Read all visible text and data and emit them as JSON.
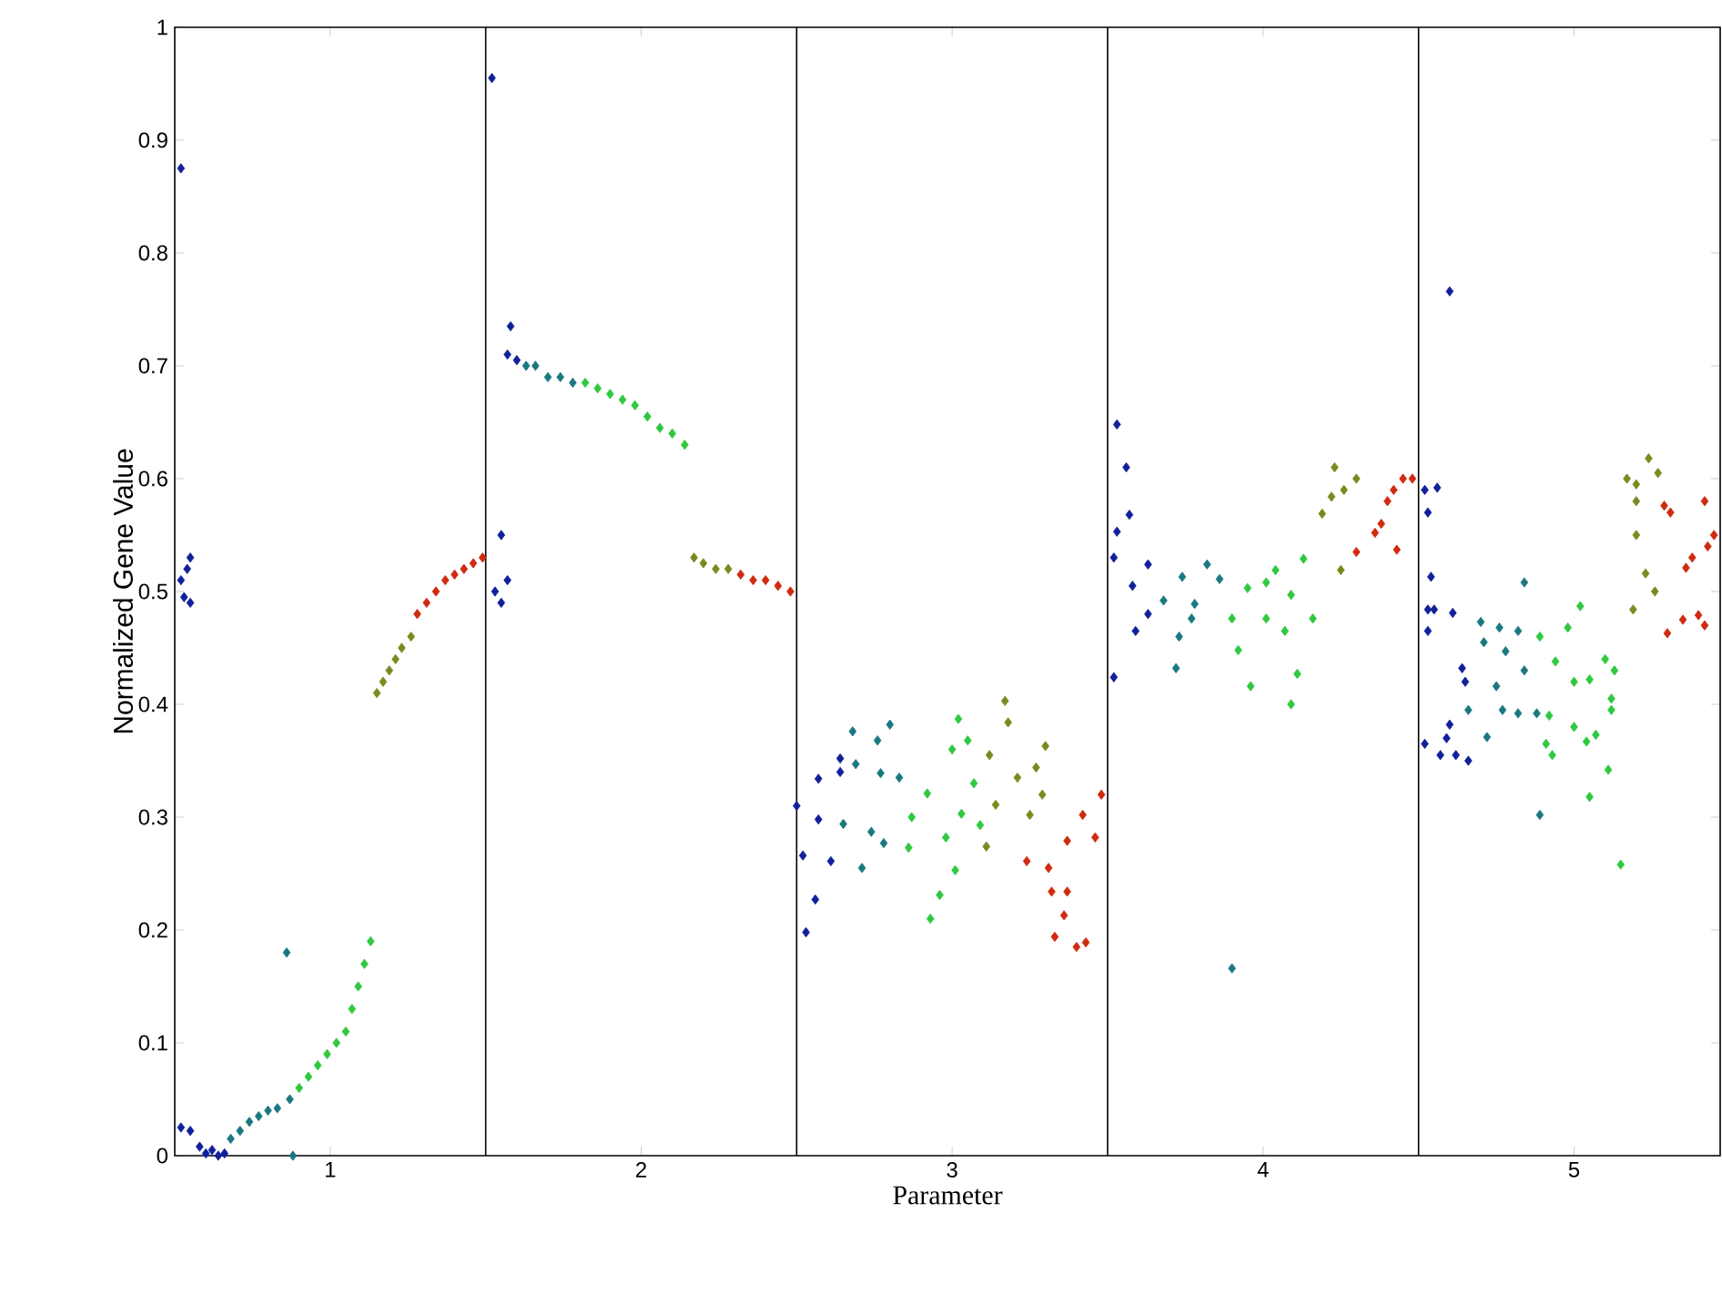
{
  "chart_data": {
    "type": "scatter",
    "xlabel": "Parameter",
    "ylabel": "Normalized Gene Value",
    "xlim": [
      0.5,
      5.47
    ],
    "ylim": [
      0,
      1
    ],
    "xticks": [
      1,
      2,
      3,
      4,
      5
    ],
    "yticks": [
      0,
      0.1,
      0.2,
      0.3,
      0.4,
      0.5,
      0.6,
      0.7,
      0.8,
      0.9,
      1
    ],
    "grid": false,
    "marker": "diamond",
    "ref_lines": [
      {
        "axis": "x",
        "value": 1.5,
        "color": "#000000"
      },
      {
        "axis": "x",
        "value": 2.5,
        "color": "#000000"
      },
      {
        "axis": "x",
        "value": 3.5,
        "color": "#000000"
      },
      {
        "axis": "x",
        "value": 4.5,
        "color": "#000000"
      }
    ],
    "series": [
      {
        "color": "#10209a",
        "x": [
          0.52,
          0.52,
          0.54,
          0.55,
          0.53,
          0.55,
          0.52,
          0.55,
          0.58,
          0.6,
          0.62,
          0.64,
          0.66,
          1.52,
          1.55,
          1.53,
          1.55,
          1.57,
          1.58,
          1.57,
          1.6,
          2.5,
          2.53,
          2.56,
          2.52,
          2.57,
          2.57,
          2.61,
          2.64,
          2.64,
          3.53,
          3.56,
          3.53,
          3.57,
          3.52,
          3.52,
          3.63,
          3.58,
          3.59,
          3.63,
          4.52,
          4.53,
          4.52,
          4.6,
          4.56,
          4.54,
          4.53,
          4.55,
          4.61,
          4.53,
          4.6,
          4.59,
          4.57,
          4.62,
          4.66,
          4.64,
          4.65
        ],
        "values": [
          0.875,
          0.51,
          0.52,
          0.53,
          0.495,
          0.49,
          0.025,
          0.022,
          0.008,
          0.002,
          0.005,
          0.0,
          0.002,
          0.955,
          0.55,
          0.5,
          0.49,
          0.51,
          0.735,
          0.71,
          0.705,
          0.31,
          0.198,
          0.227,
          0.266,
          0.334,
          0.298,
          0.261,
          0.352,
          0.34,
          0.648,
          0.61,
          0.553,
          0.568,
          0.53,
          0.424,
          0.524,
          0.505,
          0.465,
          0.48,
          0.59,
          0.57,
          0.365,
          0.766,
          0.592,
          0.513,
          0.484,
          0.484,
          0.481,
          0.465,
          0.382,
          0.37,
          0.355,
          0.355,
          0.35,
          0.432,
          0.42
        ]
      },
      {
        "color": "#1a7880",
        "x": [
          0.68,
          0.71,
          0.74,
          0.77,
          0.8,
          0.83,
          0.86,
          0.88,
          0.87,
          1.63,
          1.66,
          1.7,
          1.74,
          1.78,
          2.68,
          2.69,
          2.65,
          2.71,
          2.76,
          2.8,
          2.77,
          2.83,
          2.74,
          2.78,
          3.68,
          3.74,
          3.73,
          3.72,
          3.78,
          3.77,
          3.82,
          3.86,
          3.9,
          4.7,
          4.76,
          4.71,
          4.78,
          4.82,
          4.66,
          4.72,
          4.75,
          4.77,
          4.82,
          4.84,
          4.84,
          4.88,
          4.89
        ],
        "values": [
          0.015,
          0.022,
          0.03,
          0.035,
          0.04,
          0.042,
          0.18,
          0.0,
          0.05,
          0.7,
          0.7,
          0.69,
          0.69,
          0.685,
          0.376,
          0.347,
          0.294,
          0.255,
          0.368,
          0.382,
          0.339,
          0.335,
          0.287,
          0.277,
          0.492,
          0.513,
          0.46,
          0.432,
          0.489,
          0.476,
          0.524,
          0.511,
          0.166,
          0.473,
          0.468,
          0.455,
          0.447,
          0.465,
          0.395,
          0.371,
          0.416,
          0.395,
          0.392,
          0.43,
          0.508,
          0.392,
          0.302
        ]
      },
      {
        "color": "#30c840",
        "x": [
          0.9,
          0.93,
          0.96,
          0.99,
          1.02,
          1.05,
          1.07,
          1.09,
          1.11,
          1.13,
          1.82,
          1.86,
          1.9,
          1.94,
          1.98,
          2.02,
          2.06,
          2.1,
          2.14,
          2.86,
          2.92,
          2.87,
          3.02,
          3.0,
          3.05,
          2.93,
          2.96,
          3.01,
          2.98,
          3.03,
          3.07,
          3.09,
          3.9,
          3.92,
          3.96,
          3.95,
          4.01,
          4.04,
          4.01,
          4.07,
          4.09,
          4.11,
          4.09,
          4.13,
          4.16,
          4.89,
          4.98,
          5.02,
          4.94,
          5.0,
          5.05,
          4.92,
          5.0,
          5.04,
          4.91,
          4.93,
          5.07,
          5.05,
          5.11,
          5.1,
          5.13,
          5.12,
          5.12,
          5.15
        ],
        "values": [
          0.06,
          0.07,
          0.08,
          0.09,
          0.1,
          0.11,
          0.13,
          0.15,
          0.17,
          0.19,
          0.685,
          0.68,
          0.675,
          0.67,
          0.665,
          0.655,
          0.645,
          0.64,
          0.63,
          0.273,
          0.321,
          0.3,
          0.387,
          0.36,
          0.368,
          0.21,
          0.231,
          0.253,
          0.282,
          0.303,
          0.33,
          0.293,
          0.476,
          0.448,
          0.416,
          0.503,
          0.508,
          0.519,
          0.476,
          0.465,
          0.497,
          0.427,
          0.4,
          0.529,
          0.476,
          0.46,
          0.468,
          0.487,
          0.438,
          0.42,
          0.422,
          0.39,
          0.38,
          0.367,
          0.365,
          0.355,
          0.373,
          0.318,
          0.342,
          0.44,
          0.43,
          0.405,
          0.395,
          0.258
        ]
      },
      {
        "color": "#7a8a20",
        "x": [
          1.15,
          1.17,
          1.19,
          1.21,
          1.23,
          1.26,
          2.17,
          2.2,
          2.24,
          2.28,
          3.12,
          3.14,
          3.11,
          3.17,
          3.18,
          3.21,
          3.25,
          3.3,
          3.27,
          3.29,
          4.19,
          4.22,
          4.26,
          4.25,
          4.23,
          4.3,
          5.24,
          5.17,
          5.2,
          5.27,
          5.2,
          5.2,
          5.23,
          5.19,
          5.26
        ],
        "values": [
          0.41,
          0.42,
          0.43,
          0.44,
          0.45,
          0.46,
          0.53,
          0.525,
          0.52,
          0.52,
          0.355,
          0.311,
          0.274,
          0.403,
          0.384,
          0.335,
          0.302,
          0.363,
          0.344,
          0.32,
          0.569,
          0.584,
          0.59,
          0.519,
          0.61,
          0.6,
          0.618,
          0.6,
          0.595,
          0.605,
          0.58,
          0.55,
          0.516,
          0.484,
          0.5
        ]
      },
      {
        "color": "#d02a10",
        "x": [
          1.28,
          1.31,
          1.34,
          1.37,
          1.4,
          1.43,
          1.46,
          1.49,
          2.32,
          2.36,
          2.4,
          2.44,
          2.48,
          3.24,
          3.31,
          3.32,
          3.37,
          3.36,
          3.33,
          3.4,
          3.43,
          3.42,
          3.37,
          3.46,
          3.48,
          4.3,
          4.36,
          4.43,
          4.38,
          4.42,
          4.45,
          4.48,
          4.4,
          5.29,
          5.31,
          5.36,
          5.38,
          5.42,
          5.45,
          5.43,
          5.3,
          5.35,
          5.4,
          5.42
        ],
        "values": [
          0.48,
          0.49,
          0.5,
          0.51,
          0.515,
          0.52,
          0.525,
          0.53,
          0.515,
          0.51,
          0.51,
          0.505,
          0.5,
          0.261,
          0.255,
          0.234,
          0.234,
          0.213,
          0.194,
          0.185,
          0.189,
          0.302,
          0.279,
          0.282,
          0.32,
          0.535,
          0.552,
          0.537,
          0.56,
          0.59,
          0.6,
          0.6,
          0.58,
          0.576,
          0.57,
          0.521,
          0.53,
          0.58,
          0.55,
          0.54,
          0.463,
          0.475,
          0.479,
          0.47
        ]
      }
    ]
  }
}
